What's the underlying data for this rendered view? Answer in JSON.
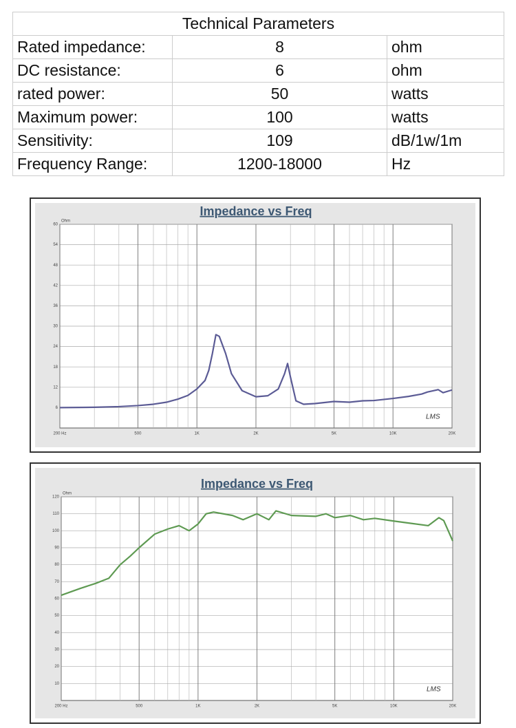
{
  "table": {
    "title": "Technical Parameters",
    "rows": [
      [
        "Rated impedance:",
        "8",
        "ohm"
      ],
      [
        "DC resistance:",
        "6",
        "ohm"
      ],
      [
        "rated power:",
        "50",
        "watts"
      ],
      [
        "Maximum power:",
        "100",
        "watts"
      ],
      [
        "Sensitivity:",
        "109",
        "dB/1w/1m"
      ],
      [
        "Frequency Range:",
        "1200-18000",
        "Hz"
      ]
    ]
  },
  "chart_data": [
    {
      "type": "line",
      "title": "Impedance vs Freq",
      "y_label": "Ohm",
      "annotation": "LMS",
      "xscale": "log",
      "grid": true,
      "color": "#5b5b95",
      "x": [
        200,
        300,
        400,
        500,
        600,
        700,
        800,
        900,
        1000,
        1100,
        1150,
        1200,
        1250,
        1300,
        1400,
        1500,
        1700,
        2000,
        2300,
        2600,
        2800,
        2900,
        3000,
        3200,
        3500,
        4000,
        5000,
        6000,
        7000,
        8000,
        10000,
        12000,
        14000,
        15000,
        17000,
        18000,
        20000
      ],
      "values": [
        6.0,
        6.1,
        6.3,
        6.6,
        7.0,
        7.6,
        8.5,
        9.6,
        11.5,
        14,
        17,
        22,
        27.5,
        27,
        22,
        16,
        11,
        9.2,
        9.5,
        11.5,
        16,
        19,
        15,
        8,
        7.0,
        7.2,
        7.8,
        7.6,
        8.0,
        8.1,
        8.7,
        9.3,
        10,
        10.6,
        11.3,
        10.4,
        11.2
      ],
      "xlim": [
        200,
        20000
      ],
      "xticks": [
        {
          "value": 200,
          "label": "200 Hz"
        },
        500,
        {
          "value": 1000,
          "label": "1K"
        },
        {
          "value": 2000,
          "label": "2K"
        },
        {
          "value": 5000,
          "label": "5K"
        },
        {
          "value": 10000,
          "label": "10K"
        },
        {
          "value": 20000,
          "label": "20K"
        }
      ],
      "ylim": [
        0,
        60
      ],
      "yticks": [
        6,
        12,
        18,
        24,
        30,
        36,
        42,
        48,
        54,
        60
      ]
    },
    {
      "type": "line",
      "title": "Impedance vs Freq",
      "y_label": "Ohm",
      "annotation": "LMS",
      "xscale": "log",
      "grid": true,
      "color": "#5e9a52",
      "x": [
        200,
        250,
        300,
        350,
        400,
        450,
        500,
        600,
        700,
        800,
        900,
        1000,
        1100,
        1200,
        1500,
        1700,
        2000,
        2300,
        2500,
        3000,
        4000,
        4500,
        5000,
        6000,
        7000,
        8000,
        10000,
        12000,
        15000,
        17000,
        18000,
        20000
      ],
      "values": [
        62,
        66,
        69,
        72,
        80,
        85,
        90,
        98,
        101,
        103,
        100,
        104,
        110,
        111,
        109,
        106.5,
        110,
        106.5,
        111.7,
        109,
        108.5,
        110,
        107.7,
        109,
        106.5,
        107.3,
        105.7,
        104.5,
        103,
        107.7,
        106,
        94
      ],
      "xlim": [
        200,
        20000
      ],
      "xticks": [
        {
          "value": 200,
          "label": "200 Hz"
        },
        500,
        {
          "value": 1000,
          "label": "1K"
        },
        {
          "value": 2000,
          "label": "2K"
        },
        {
          "value": 5000,
          "label": "5K"
        },
        {
          "value": 10000,
          "label": "10K"
        },
        {
          "value": 20000,
          "label": "20K"
        }
      ],
      "ylim": [
        0,
        120
      ],
      "yticks": [
        10,
        20,
        30,
        40,
        50,
        60,
        70,
        80,
        90,
        100,
        110,
        120
      ]
    }
  ]
}
